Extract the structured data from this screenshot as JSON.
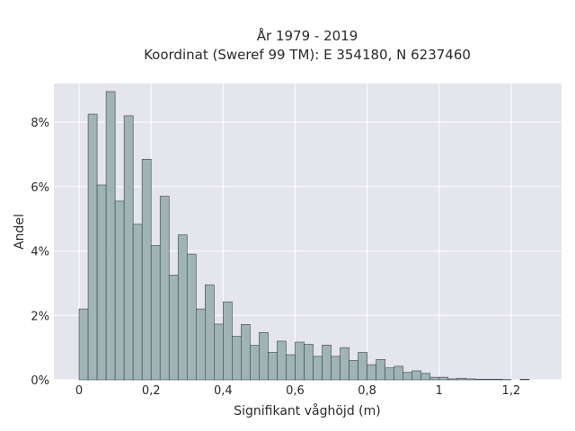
{
  "chart_data": {
    "type": "bar",
    "title_lines": [
      "År 1979 - 2019",
      "Koordinat (Sweref 99 TM): E 354180, N 6237460"
    ],
    "xlabel": "Signifikant våghöjd (m)",
    "ylabel": "Andel",
    "xlim": [
      -0.07,
      1.34
    ],
    "ylim": [
      0,
      9.2
    ],
    "x_ticks": [
      {
        "value": 0,
        "label": "0"
      },
      {
        "value": 0.2,
        "label": "0,2"
      },
      {
        "value": 0.4,
        "label": "0,4"
      },
      {
        "value": 0.6,
        "label": "0,6"
      },
      {
        "value": 0.8,
        "label": "0,8"
      },
      {
        "value": 1.0,
        "label": "1"
      },
      {
        "value": 1.2,
        "label": "1,2"
      }
    ],
    "y_ticks": [
      {
        "value": 0,
        "label": "0%"
      },
      {
        "value": 2,
        "label": "2%"
      },
      {
        "value": 4,
        "label": "4%"
      },
      {
        "value": 6,
        "label": "6%"
      },
      {
        "value": 8,
        "label": "8%"
      }
    ],
    "bin_start": 0.0,
    "bin_width": 0.025,
    "values": [
      2.2,
      8.25,
      6.05,
      8.95,
      5.55,
      8.2,
      4.83,
      6.85,
      4.17,
      5.7,
      3.25,
      4.5,
      3.9,
      2.2,
      2.95,
      1.73,
      2.42,
      1.35,
      1.72,
      1.07,
      1.47,
      0.85,
      1.2,
      0.78,
      1.17,
      1.1,
      0.73,
      1.08,
      0.73,
      1.0,
      0.6,
      0.85,
      0.47,
      0.63,
      0.37,
      0.42,
      0.23,
      0.28,
      0.2,
      0.08,
      0.08,
      0.03,
      0.05,
      0.03,
      0.02,
      0.02,
      0.02,
      0.01,
      0.0,
      0.02
    ],
    "grid": true,
    "colors": {
      "plot_bg": "#e5e5ee",
      "grid": "#ffffff",
      "bar_fill": "#9fb5b5",
      "bar_stroke": "#3a4444"
    }
  }
}
